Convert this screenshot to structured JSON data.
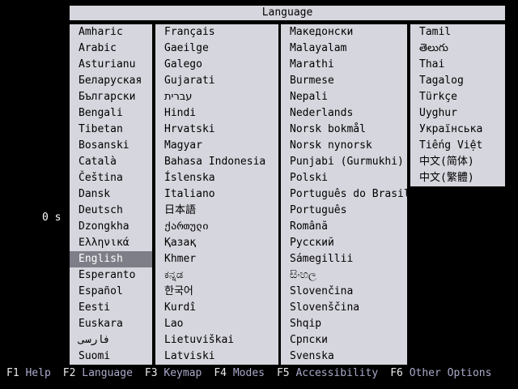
{
  "title": "Language",
  "timer": "0 s",
  "selected": {
    "column": 0,
    "row": 14,
    "label": "English"
  },
  "columns": [
    {
      "items": [
        "Amharic",
        "Arabic",
        "Asturianu",
        "Беларуская",
        "Български",
        "Bengali",
        "Tibetan",
        "Bosanski",
        "Català",
        "Čeština",
        "Dansk",
        "Deutsch",
        "Dzongkha",
        "Ελληνικά",
        "English",
        "Esperanto",
        "Español",
        "Eesti",
        "Euskara",
        "فارسی",
        "Suomi"
      ]
    },
    {
      "items": [
        "Français",
        "Gaeilge",
        "Galego",
        "Gujarati",
        "עברית",
        "Hindi",
        "Hrvatski",
        "Magyar",
        "Bahasa Indonesia",
        "Íslenska",
        "Italiano",
        "日本語",
        "ქართული",
        "Қазақ",
        "Khmer",
        "ಕನ್ನಡ",
        "한국어",
        "Kurdî",
        "Lao",
        "Lietuviškai",
        "Latviski"
      ]
    },
    {
      "items": [
        "Македонски",
        "Malayalam",
        "Marathi",
        "Burmese",
        "Nepali",
        "Nederlands",
        "Norsk bokmål",
        "Norsk nynorsk",
        "Punjabi (Gurmukhi)",
        "Polski",
        "Português do Brasil",
        "Português",
        "Română",
        "Русский",
        "Sámegillii",
        "සිංහල",
        "Slovenčina",
        "Slovenščina",
        "Shqip",
        "Српски",
        "Svenska"
      ]
    },
    {
      "items": [
        "Tamil",
        "తెలుగు",
        "Thai",
        "Tagalog",
        "Türkçe",
        "Uyghur",
        "Українська",
        "Tiếng Việt",
        "中文(简体)",
        "中文(繁體)"
      ]
    }
  ],
  "fkeys": [
    {
      "key": "F1",
      "label": "Help"
    },
    {
      "key": "F2",
      "label": "Language"
    },
    {
      "key": "F3",
      "label": "Keymap"
    },
    {
      "key": "F4",
      "label": "Modes"
    },
    {
      "key": "F5",
      "label": "Accessibility"
    },
    {
      "key": "F6",
      "label": "Other Options"
    }
  ],
  "colors": {
    "screen_bg": "#000000",
    "dialog_bg": "#d6d6de",
    "dialog_text": "#000000",
    "highlight_bg": "#7e7e88",
    "highlight_text": "#ffffff",
    "timer_text": "#ffffff",
    "fkey_key": "#e9e9e9",
    "fkey_label": "#a9a9c9"
  }
}
